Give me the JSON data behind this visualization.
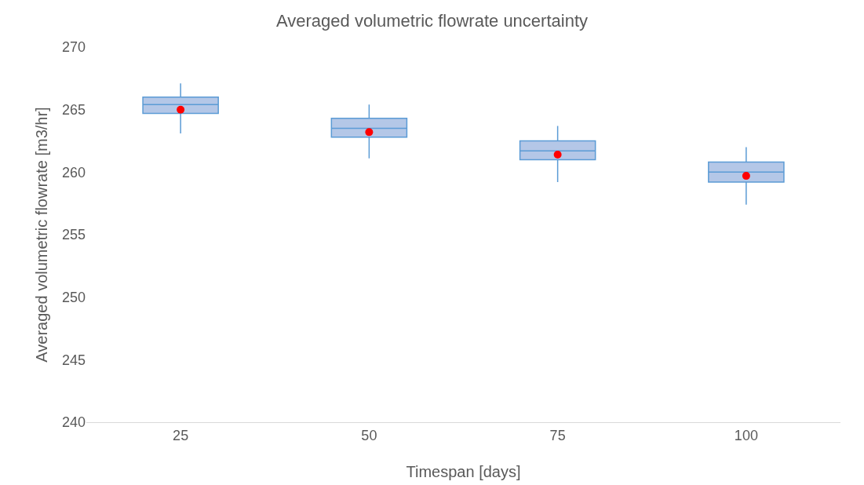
{
  "chart_data": {
    "type": "box",
    "title": "Averaged volumetric flowrate uncertainty",
    "xlabel": "Timespan [days]",
    "ylabel": "Averaged volumetric flowrate [m3/hr]",
    "categories": [
      "25",
      "50",
      "75",
      "100"
    ],
    "color": "#b4c7e7",
    "boxes": [
      {
        "low": 263.1,
        "q1": 264.7,
        "median": 265.4,
        "q3": 266.0,
        "high": 267.1,
        "mean": 265.0
      },
      {
        "low": 261.1,
        "q1": 262.8,
        "median": 263.5,
        "q3": 264.3,
        "high": 265.4,
        "mean": 263.2
      },
      {
        "low": 259.2,
        "q1": 261.0,
        "median": 261.7,
        "q3": 262.5,
        "high": 263.7,
        "mean": 261.4
      },
      {
        "low": 257.4,
        "q1": 259.2,
        "median": 260.0,
        "q3": 260.8,
        "high": 262.0,
        "mean": 259.7
      }
    ],
    "ylim": [
      240,
      270
    ],
    "yticks": [
      240,
      245,
      250,
      255,
      260,
      265,
      270
    ],
    "grid": false
  }
}
